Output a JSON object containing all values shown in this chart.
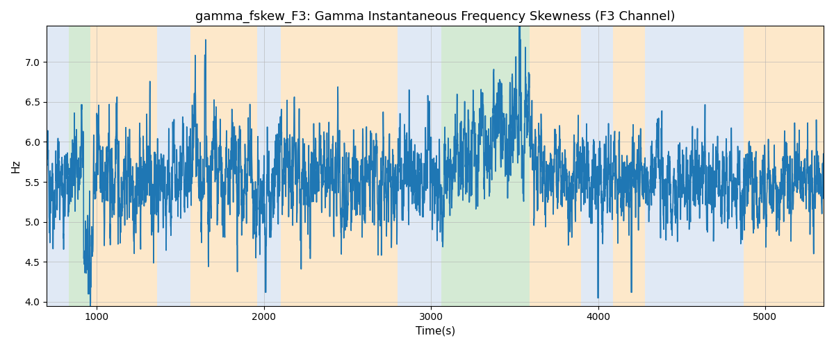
{
  "title": "gamma_fskew_F3: Gamma Instantaneous Frequency Skewness (F3 Channel)",
  "xlabel": "Time(s)",
  "ylabel": "Hz",
  "xlim": [
    700,
    5350
  ],
  "ylim": [
    3.95,
    7.45
  ],
  "yticks": [
    4.0,
    4.5,
    5.0,
    5.5,
    6.0,
    6.5,
    7.0
  ],
  "xticks": [
    1000,
    2000,
    3000,
    4000,
    5000
  ],
  "line_color": "#1f77b4",
  "line_width": 1.2,
  "background_color": "#ffffff",
  "grid_color": "#b0b0b0",
  "title_fontsize": 13,
  "label_fontsize": 11,
  "bands": [
    {
      "xmin": 700,
      "xmax": 830,
      "color": "#c8d8ee",
      "alpha": 0.55
    },
    {
      "xmin": 830,
      "xmax": 960,
      "color": "#b2d9b2",
      "alpha": 0.55
    },
    {
      "xmin": 960,
      "xmax": 1360,
      "color": "#fdd9a8",
      "alpha": 0.6
    },
    {
      "xmin": 1360,
      "xmax": 1560,
      "color": "#c8d8ee",
      "alpha": 0.55
    },
    {
      "xmin": 1560,
      "xmax": 1960,
      "color": "#fdd9a8",
      "alpha": 0.6
    },
    {
      "xmin": 1960,
      "xmax": 2100,
      "color": "#c8d8ee",
      "alpha": 0.55
    },
    {
      "xmin": 2100,
      "xmax": 2800,
      "color": "#fdd9a8",
      "alpha": 0.6
    },
    {
      "xmin": 2800,
      "xmax": 3060,
      "color": "#c8d8ee",
      "alpha": 0.55
    },
    {
      "xmin": 3060,
      "xmax": 3590,
      "color": "#b2d9b2",
      "alpha": 0.55
    },
    {
      "xmin": 3590,
      "xmax": 3900,
      "color": "#fdd9a8",
      "alpha": 0.6
    },
    {
      "xmin": 3900,
      "xmax": 4090,
      "color": "#c8d8ee",
      "alpha": 0.55
    },
    {
      "xmin": 4090,
      "xmax": 4280,
      "color": "#fdd9a8",
      "alpha": 0.6
    },
    {
      "xmin": 4280,
      "xmax": 4870,
      "color": "#c8d8ee",
      "alpha": 0.55
    },
    {
      "xmin": 4870,
      "xmax": 5350,
      "color": "#fdd9a8",
      "alpha": 0.6
    }
  ],
  "seed": 42,
  "n_points": 4700,
  "x_start": 700,
  "x_end": 5350,
  "base_mean": 5.52,
  "ar_coeff": 0.75,
  "base_std": 0.32
}
